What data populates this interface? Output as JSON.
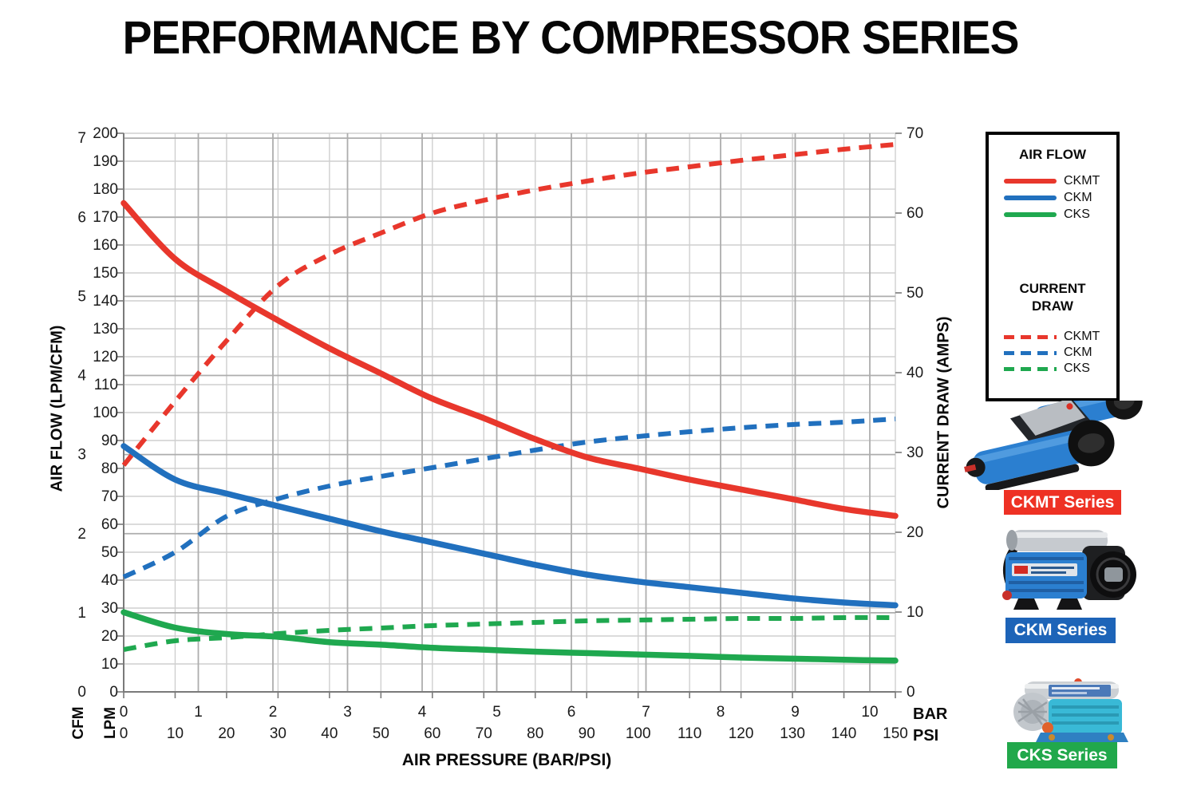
{
  "title": "PERFORMANCE BY COMPRESSOR SERIES",
  "axes_units": {
    "cfm": "CFM",
    "lpm": "LPM",
    "bar": "BAR",
    "psi": "PSI"
  },
  "colors": {
    "red": "#E8372C",
    "blue": "#2170BE",
    "green": "#1FA84F",
    "label_red": "#EE3124",
    "label_blue": "#1D64B8",
    "label_green": "#21A84B",
    "grid_minor": "#CFCFCF",
    "grid_major": "#ADADAD",
    "axis": "#7A7A7A",
    "tick_text": "#1B1B1B"
  },
  "legend": {
    "air_flow_header": "AIR FLOW",
    "current_draw_header": [
      "CURRENT",
      "DRAW"
    ],
    "rows_solid": [
      {
        "label": "CKMT",
        "color": "#E8372C"
      },
      {
        "label": "CKM",
        "color": "#2170BE"
      },
      {
        "label": "CKS",
        "color": "#1FA84F"
      }
    ],
    "rows_dashed": [
      {
        "label": "CKMT",
        "color": "#E8372C"
      },
      {
        "label": "CKM",
        "color": "#2170BE"
      },
      {
        "label": "CKS",
        "color": "#1FA84F"
      }
    ]
  },
  "products": [
    {
      "label": "CKMT Series",
      "color": "#EE3124"
    },
    {
      "label": "CKM Series",
      "color": "#1D64B8"
    },
    {
      "label": "CKS Series",
      "color": "#21A84B"
    }
  ],
  "chart_data": {
    "type": "line",
    "title": "PERFORMANCE BY COMPRESSOR SERIES",
    "x": {
      "label": "AIR PRESSURE (BAR/PSI)",
      "psi_ticks": [
        0,
        10,
        20,
        30,
        40,
        50,
        60,
        70,
        80,
        90,
        100,
        110,
        120,
        130,
        140,
        150
      ],
      "bar_ticks": [
        0,
        1,
        2,
        3,
        4,
        5,
        6,
        7,
        8,
        9,
        10
      ],
      "psi_range": [
        0,
        150
      ],
      "bar_range": [
        0,
        10
      ]
    },
    "left_axis": {
      "label": "AIR FLOW (LPM/CFM)",
      "lpm_ticks": [
        0,
        10,
        20,
        30,
        40,
        50,
        60,
        70,
        80,
        90,
        100,
        110,
        120,
        130,
        140,
        150,
        160,
        170,
        180,
        190,
        200
      ],
      "cfm_ticks": [
        0,
        1,
        2,
        3,
        4,
        5,
        6,
        7
      ],
      "lpm_range": [
        0,
        200
      ],
      "cfm_range": [
        0,
        7
      ]
    },
    "right_axis": {
      "label": "CURRENT DRAW (AMPS)",
      "amps_ticks": [
        0,
        10,
        20,
        30,
        40,
        50,
        60,
        70
      ],
      "amps_range": [
        0,
        70
      ]
    },
    "grid": "on",
    "legend_position": "right",
    "x_psi": [
      0,
      10,
      20,
      30,
      40,
      50,
      60,
      70,
      80,
      90,
      100,
      110,
      120,
      130,
      140,
      150
    ],
    "series": [
      {
        "id": "cks-current",
        "name": "CKS current draw",
        "group": "CURRENT DRAW",
        "style": "dashed",
        "axis": "amps",
        "color": "#1FA84F",
        "values": [
          5.3,
          6.4,
          6.8,
          7.3,
          7.7,
          8.0,
          8.3,
          8.5,
          8.7,
          8.9,
          9.0,
          9.1,
          9.2,
          9.2,
          9.3,
          9.3
        ]
      },
      {
        "id": "cks-flow",
        "name": "CKS air flow",
        "group": "AIR FLOW",
        "style": "solid",
        "axis": "lpm",
        "color": "#1FA84F",
        "values": [
          28.5,
          23.0,
          20.7,
          19.7,
          17.8,
          16.9,
          15.8,
          15.1,
          14.4,
          13.9,
          13.4,
          12.9,
          12.3,
          11.9,
          11.5,
          11.2
        ]
      },
      {
        "id": "ckm-current",
        "name": "CKM current draw",
        "group": "CURRENT DRAW",
        "style": "dashed",
        "axis": "amps",
        "color": "#2170BE",
        "values": [
          14.4,
          17.5,
          22.0,
          24.2,
          25.8,
          27.0,
          28.1,
          29.2,
          30.3,
          31.3,
          32.0,
          32.6,
          33.1,
          33.5,
          33.8,
          34.2
        ]
      },
      {
        "id": "ckm-flow",
        "name": "CKM air flow",
        "group": "AIR FLOW",
        "style": "solid",
        "axis": "lpm",
        "color": "#2170BE",
        "values": [
          88,
          76,
          71,
          66.5,
          62,
          57.5,
          53.5,
          49.5,
          45.5,
          42,
          39.5,
          37.5,
          35.5,
          33.5,
          32,
          31
        ]
      },
      {
        "id": "ckmt-current",
        "name": "CKMT current draw",
        "group": "CURRENT DRAW",
        "style": "dashed",
        "axis": "amps",
        "color": "#E8372C",
        "values": [
          28.4,
          36.4,
          44.0,
          50.9,
          54.8,
          57.5,
          60.0,
          61.6,
          62.9,
          64.0,
          65.0,
          65.8,
          66.6,
          67.3,
          68.0,
          68.6
        ]
      },
      {
        "id": "ckmt-flow",
        "name": "CKMT air flow",
        "group": "AIR FLOW",
        "style": "solid",
        "axis": "lpm",
        "color": "#E8372C",
        "values": [
          175,
          155,
          143.5,
          133,
          123,
          114,
          105,
          98,
          90.5,
          84,
          80,
          76,
          72.5,
          69,
          65.5,
          63
        ]
      }
    ]
  }
}
